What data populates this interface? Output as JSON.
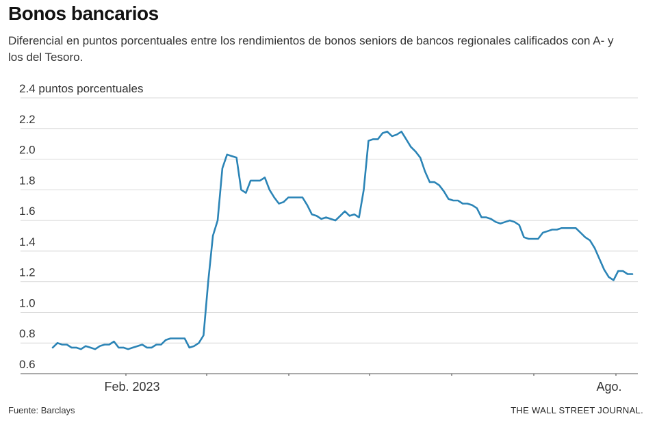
{
  "title": "Bonos bancarios",
  "subtitle": "Diferencial en puntos porcentuales entre los rendimientos de bonos seniors de bancos regionales calificados con A- y los del Tesoro.",
  "source": "Fuente: Barclays",
  "credit": "THE WALL STREET JOURNAL.",
  "colors": {
    "line": "#2b84b6",
    "grid": "#d8d8d8",
    "axis": "#777777"
  },
  "chart_data": {
    "type": "line",
    "title": "Bonos bancarios",
    "ylabel": "puntos porcentuales",
    "top_tick_label": "2.4 puntos porcentuales",
    "ylim": [
      0.6,
      2.4
    ],
    "y_ticks": [
      0.6,
      0.8,
      1.0,
      1.2,
      1.4,
      1.6,
      1.8,
      2.0,
      2.2,
      2.4
    ],
    "y_tick_labels": [
      "0.6",
      "0.8",
      "1.0",
      "1.2",
      "1.4",
      "1.6",
      "1.8",
      "2.0",
      "2.2",
      "2.4 puntos porcentuales"
    ],
    "x_tick_labels": [
      "Feb. 2023",
      "Ago."
    ],
    "grid": true,
    "series": [
      {
        "values": [
          0.77,
          0.8,
          0.79,
          0.79,
          0.77,
          0.77,
          0.76,
          0.78,
          0.77,
          0.76,
          0.78,
          0.79,
          0.79,
          0.81,
          0.77,
          0.77,
          0.76,
          0.77,
          0.78,
          0.79,
          0.77,
          0.77,
          0.79,
          0.79,
          0.82,
          0.83,
          0.83,
          0.83,
          0.83,
          0.77,
          0.78,
          0.8,
          0.85,
          1.2,
          1.5,
          1.6,
          1.94,
          2.03,
          2.02,
          2.01,
          1.8,
          1.78,
          1.86,
          1.86,
          1.86,
          1.88,
          1.8,
          1.75,
          1.71,
          1.72,
          1.75,
          1.75,
          1.75,
          1.75,
          1.7,
          1.64,
          1.63,
          1.61,
          1.62,
          1.61,
          1.6,
          1.63,
          1.66,
          1.63,
          1.64,
          1.62,
          1.8,
          2.12,
          2.13,
          2.13,
          2.17,
          2.18,
          2.15,
          2.16,
          2.18,
          2.13,
          2.08,
          2.05,
          2.01,
          1.92,
          1.85,
          1.85,
          1.83,
          1.79,
          1.74,
          1.73,
          1.73,
          1.71,
          1.71,
          1.7,
          1.68,
          1.62,
          1.62,
          1.61,
          1.59,
          1.58,
          1.59,
          1.6,
          1.59,
          1.57,
          1.49,
          1.48,
          1.48,
          1.48,
          1.52,
          1.53,
          1.54,
          1.54,
          1.55,
          1.55,
          1.55,
          1.55,
          1.52,
          1.49,
          1.47,
          1.42,
          1.35,
          1.28,
          1.23,
          1.21,
          1.27,
          1.27,
          1.25,
          1.25
        ]
      }
    ]
  }
}
